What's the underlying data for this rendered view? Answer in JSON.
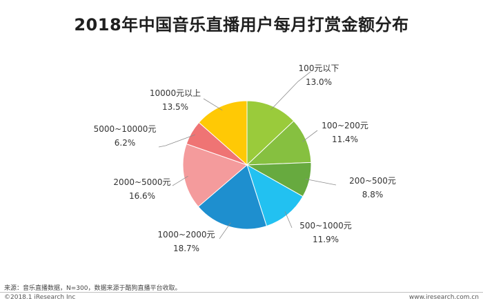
{
  "chart_data": {
    "type": "pie",
    "title": "2018年中国音乐直播用户每月打赏金额分布",
    "unit": "%",
    "series": [
      {
        "name": "100元以下",
        "value": 13.0,
        "value_label": "13.0%",
        "color": "#9acb3b"
      },
      {
        "name": "100~200元",
        "value": 11.4,
        "value_label": "11.4%",
        "color": "#86c040"
      },
      {
        "name": "200~500元",
        "value": 8.8,
        "value_label": "8.8%",
        "color": "#67aa3f"
      },
      {
        "name": "500~1000元",
        "value": 11.9,
        "value_label": "11.9%",
        "color": "#22c1f1"
      },
      {
        "name": "1000~2000元",
        "value": 18.7,
        "value_label": "18.7%",
        "color": "#1e8fcf"
      },
      {
        "name": "2000~5000元",
        "value": 16.6,
        "value_label": "16.6%",
        "color": "#f49b9c"
      },
      {
        "name": "5000~10000元",
        "value": 6.2,
        "value_label": "6.2%",
        "color": "#ef7474"
      },
      {
        "name": "10000元以上",
        "value": 13.5,
        "value_label": "13.5%",
        "color": "#ffc905"
      }
    ]
  },
  "footer": {
    "source": "来源：音乐直播数据，N=300，数据来源于酷狗直播平台收取。",
    "copyright": "©2018.1 iResearch Inc",
    "website": "www.iresearch.com.cn"
  }
}
